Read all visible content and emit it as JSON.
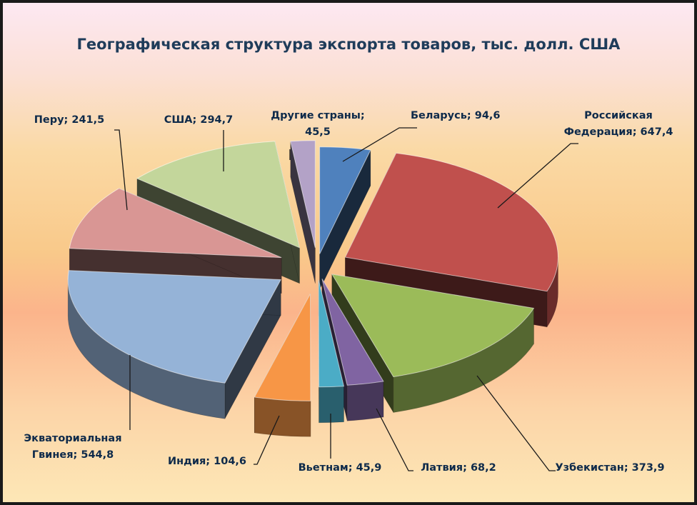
{
  "chart_data": {
    "type": "pie",
    "title": "Географическая структура экспорта товаров, тыс. долл. США",
    "slices": [
      {
        "label": "Беларусь",
        "value": 94.6,
        "value_text": "94,6",
        "color": "#4f81bd",
        "name_lines": [
          "Беларусь;"
        ],
        "value_inline": true
      },
      {
        "label": "Российская Федерация",
        "value": 647.4,
        "value_text": "647,4",
        "color": "#c0504d",
        "name_lines": [
          "Российская",
          "Федерация;"
        ],
        "value_inline": true
      },
      {
        "label": "Узбекистан",
        "value": 373.9,
        "value_text": "373,9",
        "color": "#9bbb59",
        "name_lines": [
          "Узбекистан;"
        ],
        "value_inline": true
      },
      {
        "label": "Латвия",
        "value": 68.2,
        "value_text": "68,2",
        "color": "#8064a2",
        "name_lines": [
          "Латвия;"
        ],
        "value_inline": true
      },
      {
        "label": "Вьетнам",
        "value": 45.9,
        "value_text": "45,9",
        "color": "#4bacc6",
        "name_lines": [
          "Вьетнам;"
        ],
        "value_inline": true
      },
      {
        "label": "Индия",
        "value": 104.6,
        "value_text": "104,6",
        "color": "#f79646",
        "name_lines": [
          "Индия;"
        ],
        "value_inline": true
      },
      {
        "label": "Экваториальная Гвинея",
        "value": 544.8,
        "value_text": "544,8",
        "color": "#95b3d7",
        "name_lines": [
          "Экваториальная",
          "Гвинея;"
        ],
        "value_inline": true
      },
      {
        "label": "Перу",
        "value": 241.5,
        "value_text": "241,5",
        "color": "#d99694",
        "name_lines": [
          "Перу;"
        ],
        "value_inline": true
      },
      {
        "label": "США",
        "value": 294.7,
        "value_text": "294,7",
        "color": "#c3d69b",
        "name_lines": [
          "США;"
        ],
        "value_inline": true
      },
      {
        "label": "Другие страны",
        "value": 45.5,
        "value_text": "45,5",
        "color": "#b3a2c7",
        "name_lines": [
          "Другие страны;"
        ],
        "value_inline": false
      }
    ],
    "legend": "none",
    "style": "3d-exploded"
  }
}
